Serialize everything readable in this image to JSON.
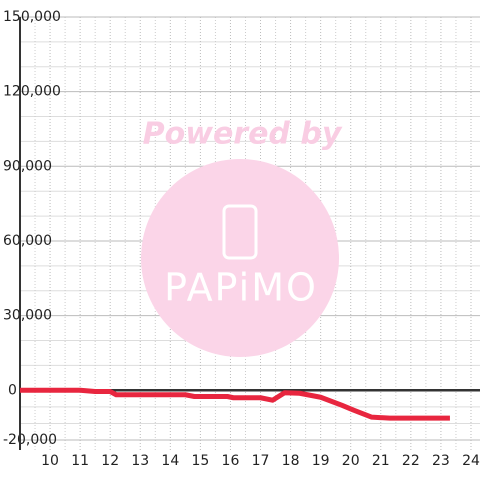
{
  "chart_data": {
    "type": "line",
    "x": [
      9,
      11,
      11.5,
      12,
      12.2,
      14.5,
      14.8,
      15.9,
      16.1,
      17,
      17.4,
      17.8,
      18.3,
      19,
      19.7,
      20.1,
      20.7,
      21.3,
      23.3
    ],
    "values": [
      0,
      0,
      -500,
      -500,
      -1800,
      -1800,
      -2500,
      -2500,
      -3000,
      -3000,
      -4000,
      -1000,
      -1200,
      -2800,
      -6000,
      -8000,
      -10800,
      -11200,
      -11200
    ],
    "color": "#e8263f",
    "xlim": [
      9,
      24.3
    ],
    "xticks": [
      10,
      11,
      12,
      13,
      14,
      15,
      16,
      17,
      18,
      19,
      20,
      21,
      22,
      23,
      24
    ],
    "ylim": [
      -24000,
      150000
    ],
    "yticks": [
      {
        "value": -20000,
        "label": "-20,000"
      },
      0,
      {
        "value": 30000,
        "label": "30,000"
      },
      {
        "value": 60000,
        "label": "60,000"
      },
      {
        "value": 90000,
        "label": "90,000"
      },
      {
        "value": 120000,
        "label": "120,000"
      },
      {
        "value": 150000,
        "label": "150,000"
      }
    ],
    "grid": true,
    "annotations": [
      "Powered by",
      "PAPiMO"
    ]
  }
}
